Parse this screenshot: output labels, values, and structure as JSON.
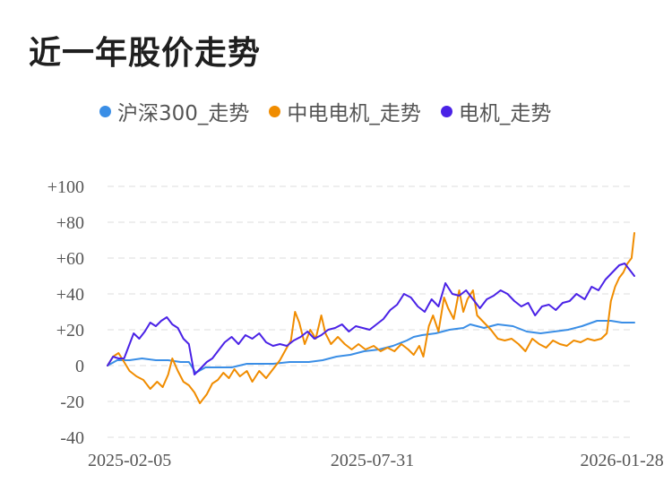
{
  "title": "近一年股价走势",
  "colors": {
    "hs300": "#3a8ee6",
    "zddj": "#f08c00",
    "dj": "#4a22e6",
    "grid": "#e8e8e8"
  },
  "chart_data": {
    "type": "line",
    "yunit": "percent change",
    "ylim": [
      -40,
      100
    ],
    "yticks": [
      100,
      80,
      60,
      40,
      20,
      0,
      -20,
      -40
    ],
    "ytick_labels": [
      "+100",
      "+80",
      "+60",
      "+40",
      "+20",
      "0",
      "-20",
      "-40"
    ],
    "xlim": [
      "2025-01-20",
      "2026-02-06"
    ],
    "xticks": [
      "2025-02-05",
      "2025-07-31",
      "2026-01-28"
    ],
    "grid": true,
    "legend_position": "top",
    "series": [
      {
        "name": "沪深300_走势",
        "color_key": "hs300",
        "points": [
          [
            "2025-01-20",
            0
          ],
          [
            "2025-01-27",
            3
          ],
          [
            "2025-02-05",
            3
          ],
          [
            "2025-02-14",
            4
          ],
          [
            "2025-02-24",
            3
          ],
          [
            "2025-03-05",
            3
          ],
          [
            "2025-03-14",
            2
          ],
          [
            "2025-03-20",
            2
          ],
          [
            "2025-03-25",
            -4
          ],
          [
            "2025-04-01",
            -1
          ],
          [
            "2025-04-10",
            -1
          ],
          [
            "2025-04-20",
            -1
          ],
          [
            "2025-05-01",
            1
          ],
          [
            "2025-05-10",
            1
          ],
          [
            "2025-05-20",
            1
          ],
          [
            "2025-06-01",
            2
          ],
          [
            "2025-06-15",
            2
          ],
          [
            "2025-06-25",
            3
          ],
          [
            "2025-07-05",
            5
          ],
          [
            "2025-07-15",
            6
          ],
          [
            "2025-07-25",
            8
          ],
          [
            "2025-08-05",
            9
          ],
          [
            "2025-08-15",
            11
          ],
          [
            "2025-08-25",
            14
          ],
          [
            "2025-08-30",
            16
          ],
          [
            "2025-09-05",
            17
          ],
          [
            "2025-09-15",
            18
          ],
          [
            "2025-09-25",
            20
          ],
          [
            "2025-10-05",
            21
          ],
          [
            "2025-10-10",
            23
          ],
          [
            "2025-10-20",
            21
          ],
          [
            "2025-10-30",
            23
          ],
          [
            "2025-11-10",
            22
          ],
          [
            "2025-11-20",
            19
          ],
          [
            "2025-11-30",
            18
          ],
          [
            "2025-12-10",
            19
          ],
          [
            "2025-12-20",
            20
          ],
          [
            "2025-12-30",
            22
          ],
          [
            "2026-01-10",
            25
          ],
          [
            "2026-01-20",
            25
          ],
          [
            "2026-01-28",
            24
          ],
          [
            "2026-02-06",
            24
          ]
        ]
      },
      {
        "name": "中电电机_走势",
        "color_key": "zddj",
        "points": [
          [
            "2025-01-20",
            0
          ],
          [
            "2025-01-24",
            5
          ],
          [
            "2025-01-28",
            7
          ],
          [
            "2025-02-01",
            2
          ],
          [
            "2025-02-05",
            -3
          ],
          [
            "2025-02-10",
            -6
          ],
          [
            "2025-02-15",
            -8
          ],
          [
            "2025-02-20",
            -13
          ],
          [
            "2025-02-25",
            -9
          ],
          [
            "2025-03-01",
            -12
          ],
          [
            "2025-03-05",
            -5
          ],
          [
            "2025-03-08",
            4
          ],
          [
            "2025-03-12",
            -3
          ],
          [
            "2025-03-16",
            -9
          ],
          [
            "2025-03-20",
            -11
          ],
          [
            "2025-03-24",
            -15
          ],
          [
            "2025-03-28",
            -21
          ],
          [
            "2025-04-02",
            -16
          ],
          [
            "2025-04-06",
            -10
          ],
          [
            "2025-04-10",
            -8
          ],
          [
            "2025-04-14",
            -4
          ],
          [
            "2025-04-18",
            -7
          ],
          [
            "2025-04-22",
            -2
          ],
          [
            "2025-04-26",
            -6
          ],
          [
            "2025-05-01",
            -3
          ],
          [
            "2025-05-05",
            -9
          ],
          [
            "2025-05-10",
            -3
          ],
          [
            "2025-05-15",
            -7
          ],
          [
            "2025-05-20",
            -2
          ],
          [
            "2025-05-25",
            3
          ],
          [
            "2025-05-30",
            10
          ],
          [
            "2025-06-02",
            14
          ],
          [
            "2025-06-05",
            30
          ],
          [
            "2025-06-08",
            24
          ],
          [
            "2025-06-12",
            12
          ],
          [
            "2025-06-16",
            20
          ],
          [
            "2025-06-20",
            15
          ],
          [
            "2025-06-24",
            28
          ],
          [
            "2025-06-27",
            18
          ],
          [
            "2025-07-01",
            12
          ],
          [
            "2025-07-06",
            16
          ],
          [
            "2025-07-11",
            12
          ],
          [
            "2025-07-16",
            9
          ],
          [
            "2025-07-21",
            12
          ],
          [
            "2025-07-26",
            9
          ],
          [
            "2025-08-01",
            11
          ],
          [
            "2025-08-06",
            8
          ],
          [
            "2025-08-11",
            10
          ],
          [
            "2025-08-16",
            8
          ],
          [
            "2025-08-21",
            12
          ],
          [
            "2025-08-26",
            9
          ],
          [
            "2025-08-30",
            6
          ],
          [
            "2025-09-03",
            11
          ],
          [
            "2025-09-06",
            5
          ],
          [
            "2025-09-10",
            22
          ],
          [
            "2025-09-13",
            28
          ],
          [
            "2025-09-17",
            19
          ],
          [
            "2025-09-21",
            38
          ],
          [
            "2025-09-24",
            32
          ],
          [
            "2025-09-28",
            26
          ],
          [
            "2025-10-02",
            42
          ],
          [
            "2025-10-05",
            30
          ],
          [
            "2025-10-08",
            37
          ],
          [
            "2025-10-12",
            42
          ],
          [
            "2025-10-15",
            28
          ],
          [
            "2025-10-20",
            24
          ],
          [
            "2025-10-25",
            20
          ],
          [
            "2025-10-30",
            15
          ],
          [
            "2025-11-04",
            14
          ],
          [
            "2025-11-09",
            15
          ],
          [
            "2025-11-14",
            12
          ],
          [
            "2025-11-19",
            8
          ],
          [
            "2025-11-24",
            15
          ],
          [
            "2025-11-29",
            12
          ],
          [
            "2025-12-04",
            10
          ],
          [
            "2025-12-09",
            14
          ],
          [
            "2025-12-14",
            12
          ],
          [
            "2025-12-19",
            11
          ],
          [
            "2025-12-24",
            14
          ],
          [
            "2025-12-29",
            13
          ],
          [
            "2026-01-03",
            15
          ],
          [
            "2026-01-08",
            14
          ],
          [
            "2026-01-13",
            15
          ],
          [
            "2026-01-17",
            18
          ],
          [
            "2026-01-20",
            36
          ],
          [
            "2026-01-23",
            44
          ],
          [
            "2026-01-26",
            49
          ],
          [
            "2026-01-29",
            52
          ],
          [
            "2026-02-01",
            57
          ],
          [
            "2026-02-04",
            60
          ],
          [
            "2026-02-06",
            74
          ]
        ]
      },
      {
        "name": "电机_走势",
        "color_key": "dj",
        "points": [
          [
            "2025-01-20",
            0
          ],
          [
            "2025-01-24",
            5
          ],
          [
            "2025-01-28",
            4
          ],
          [
            "2025-02-01",
            4
          ],
          [
            "2025-02-05",
            12
          ],
          [
            "2025-02-08",
            18
          ],
          [
            "2025-02-12",
            15
          ],
          [
            "2025-02-16",
            19
          ],
          [
            "2025-02-20",
            24
          ],
          [
            "2025-02-24",
            22
          ],
          [
            "2025-02-28",
            25
          ],
          [
            "2025-03-04",
            27
          ],
          [
            "2025-03-08",
            23
          ],
          [
            "2025-03-12",
            21
          ],
          [
            "2025-03-16",
            15
          ],
          [
            "2025-03-20",
            12
          ],
          [
            "2025-03-24",
            -5
          ],
          [
            "2025-03-28",
            -2
          ],
          [
            "2025-04-02",
            2
          ],
          [
            "2025-04-06",
            4
          ],
          [
            "2025-04-10",
            8
          ],
          [
            "2025-04-15",
            13
          ],
          [
            "2025-04-20",
            16
          ],
          [
            "2025-04-25",
            12
          ],
          [
            "2025-04-30",
            17
          ],
          [
            "2025-05-05",
            15
          ],
          [
            "2025-05-10",
            18
          ],
          [
            "2025-05-15",
            13
          ],
          [
            "2025-05-20",
            11
          ],
          [
            "2025-05-25",
            12
          ],
          [
            "2025-05-30",
            11
          ],
          [
            "2025-06-04",
            14
          ],
          [
            "2025-06-09",
            16
          ],
          [
            "2025-06-14",
            19
          ],
          [
            "2025-06-19",
            15
          ],
          [
            "2025-06-24",
            17
          ],
          [
            "2025-06-29",
            20
          ],
          [
            "2025-07-04",
            21
          ],
          [
            "2025-07-09",
            23
          ],
          [
            "2025-07-14",
            19
          ],
          [
            "2025-07-19",
            22
          ],
          [
            "2025-07-24",
            21
          ],
          [
            "2025-07-29",
            20
          ],
          [
            "2025-08-03",
            23
          ],
          [
            "2025-08-08",
            26
          ],
          [
            "2025-08-13",
            31
          ],
          [
            "2025-08-18",
            34
          ],
          [
            "2025-08-23",
            40
          ],
          [
            "2025-08-28",
            38
          ],
          [
            "2025-09-02",
            33
          ],
          [
            "2025-09-07",
            30
          ],
          [
            "2025-09-12",
            37
          ],
          [
            "2025-09-17",
            33
          ],
          [
            "2025-09-22",
            46
          ],
          [
            "2025-09-27",
            40
          ],
          [
            "2025-10-02",
            39
          ],
          [
            "2025-10-07",
            42
          ],
          [
            "2025-10-12",
            37
          ],
          [
            "2025-10-17",
            32
          ],
          [
            "2025-10-22",
            37
          ],
          [
            "2025-10-27",
            39
          ],
          [
            "2025-11-01",
            42
          ],
          [
            "2025-11-06",
            40
          ],
          [
            "2025-11-11",
            36
          ],
          [
            "2025-11-16",
            33
          ],
          [
            "2025-11-21",
            35
          ],
          [
            "2025-11-26",
            28
          ],
          [
            "2025-12-01",
            33
          ],
          [
            "2025-12-06",
            34
          ],
          [
            "2025-12-11",
            31
          ],
          [
            "2025-12-16",
            35
          ],
          [
            "2025-12-21",
            36
          ],
          [
            "2025-12-26",
            40
          ],
          [
            "2026-01-01",
            37
          ],
          [
            "2026-01-06",
            44
          ],
          [
            "2026-01-11",
            42
          ],
          [
            "2026-01-16",
            48
          ],
          [
            "2026-01-21",
            52
          ],
          [
            "2026-01-26",
            56
          ],
          [
            "2026-01-30",
            57
          ],
          [
            "2026-02-03",
            53
          ],
          [
            "2026-02-06",
            50
          ]
        ]
      }
    ]
  }
}
